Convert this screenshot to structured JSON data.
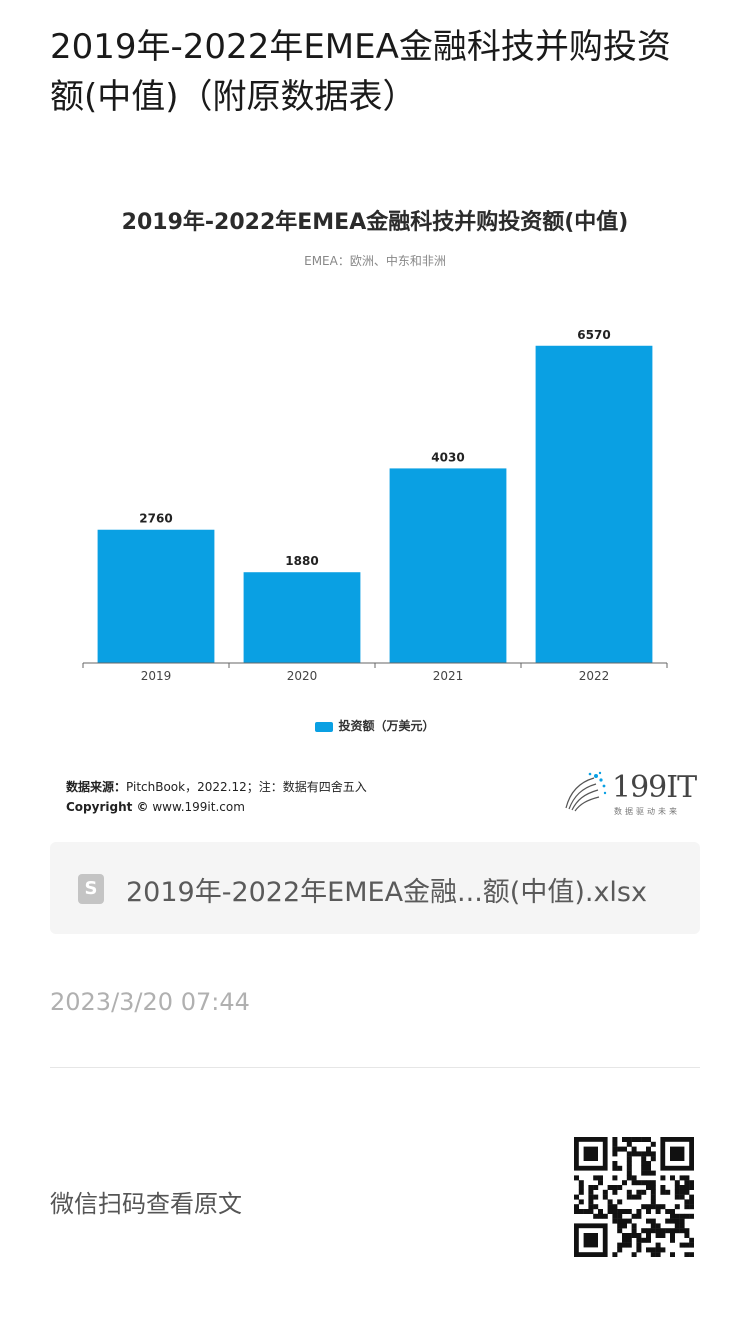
{
  "page": {
    "title": "2019年-2022年EMEA金融科技并购投资额(中值)（附原数据表）"
  },
  "chart_data": {
    "type": "bar",
    "title": "2019年-2022年EMEA金融科技并购投资额(中值)",
    "subtitle": "EMEA：欧洲、中东和非洲",
    "categories": [
      "2019",
      "2020",
      "2021",
      "2022"
    ],
    "series": [
      {
        "name": "投资额（万美元）",
        "values": [
          2760,
          1880,
          4030,
          6570
        ],
        "color": "#0aa0e3"
      }
    ],
    "value_labels": [
      "2760",
      "1880",
      "4030",
      "6570"
    ],
    "ylim": [
      0,
      7000
    ],
    "grid": false,
    "legend_position": "bottom"
  },
  "footer": {
    "source_label": "数据来源：",
    "source_text": "PitchBook，2022.12；注：数据有四舍五入",
    "copyright_label": "Copyright ©",
    "copyright_text": " www.199it.com",
    "brand_name": "199IT",
    "brand_tagline": "数据驱动未来"
  },
  "attachment": {
    "file_name": "2019年-2022年EMEA金融...额(中值).xlsx",
    "file_icon_letter": "S"
  },
  "timestamp": "2023/3/20 07:44",
  "qr": {
    "label": "微信扫码查看原文"
  }
}
